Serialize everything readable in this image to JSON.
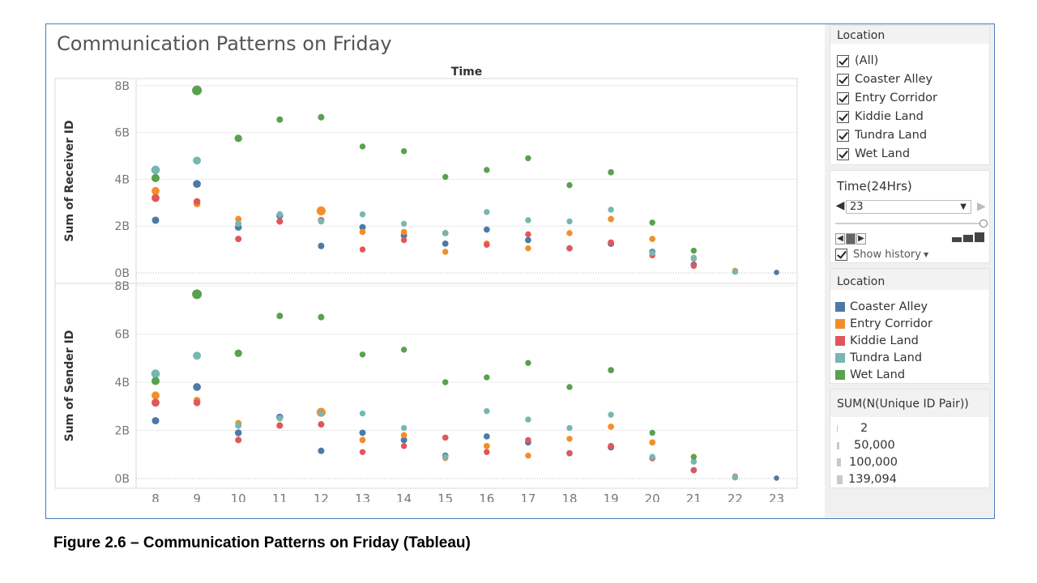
{
  "title": "Communication Patterns on Friday",
  "caption": "Figure 2.6 – Communication Patterns on Friday (Tableau)",
  "colors": {
    "Coaster Alley": "#4e79a7",
    "Entry Corridor": "#f28e2b",
    "Kiddie Land": "#e15759",
    "Tundra Land": "#76b7b2",
    "Wet Land": "#59a14f"
  },
  "filter_location": {
    "header": "Location",
    "items": [
      "(All)",
      "Coaster Alley",
      "Entry Corridor",
      "Kiddie Land",
      "Tundra Land",
      "Wet Land"
    ]
  },
  "time_filter": {
    "header": "Time(24Hrs)",
    "value": "23",
    "show_history": "Show history"
  },
  "legend_location": {
    "header": "Location",
    "items": [
      "Coaster Alley",
      "Entry Corridor",
      "Kiddie Land",
      "Tundra Land",
      "Wet Land"
    ]
  },
  "legend_size": {
    "header": "SUM(N(Unique ID Pair))",
    "items": [
      "2",
      "50,000",
      "100,000",
      "139,094"
    ]
  },
  "chart_data": {
    "type": "scatter",
    "column_header": "Time",
    "x": [
      8,
      9,
      10,
      11,
      12,
      13,
      14,
      15,
      16,
      17,
      18,
      19,
      20,
      21,
      22,
      23
    ],
    "x_ticks": [
      "8",
      "9",
      "10",
      "11",
      "12",
      "13",
      "14",
      "15",
      "16",
      "17",
      "18",
      "19",
      "20",
      "21",
      "22",
      "23"
    ],
    "size_unit": "SUM(N(Unique ID Pair))",
    "panels": [
      {
        "ylabel": "Sum of Receiver ID",
        "ylim": [
          0,
          8.4
        ],
        "y_unit": "billions",
        "y_ticks": [
          "0B",
          "2B",
          "4B",
          "6B",
          "8B"
        ],
        "series": [
          {
            "name": "Coaster Alley",
            "values": [
              2.25,
              3.8,
              1.95,
              2.45,
              1.15,
              1.95,
              1.6,
              1.25,
              1.85,
              1.4,
              1.05,
              1.25,
              0.9,
              0.35,
              0.05,
              0.02
            ],
            "sizes": [
              55000,
              70000,
              45000,
              45000,
              35000,
              35000,
              35000,
              30000,
              30000,
              30000,
              30000,
              35000,
              30000,
              30000,
              25000,
              15000
            ]
          },
          {
            "name": "Entry Corridor",
            "values": [
              3.5,
              2.95,
              2.3,
              2.2,
              2.65,
              1.75,
              1.75,
              0.9,
              1.25,
              1.05,
              1.7,
              2.3,
              1.45,
              0.6,
              0.1,
              null
            ],
            "sizes": [
              75000,
              45000,
              35000,
              35000,
              110000,
              30000,
              30000,
              25000,
              30000,
              25000,
              25000,
              30000,
              30000,
              25000,
              20000,
              0
            ]
          },
          {
            "name": "Kiddie Land",
            "values": [
              3.2,
              3.05,
              1.45,
              2.2,
              2.25,
              1.0,
              1.4,
              1.7,
              1.2,
              1.65,
              1.05,
              1.3,
              0.75,
              0.3,
              0.05,
              null
            ],
            "sizes": [
              75000,
              45000,
              35000,
              35000,
              35000,
              25000,
              25000,
              30000,
              25000,
              25000,
              25000,
              30000,
              25000,
              25000,
              20000,
              0
            ]
          },
          {
            "name": "Tundra Land",
            "values": [
              4.4,
              4.8,
              2.1,
              2.5,
              2.2,
              2.5,
              2.1,
              1.7,
              2.6,
              2.25,
              2.2,
              2.7,
              0.85,
              0.65,
              0.05,
              null
            ],
            "sizes": [
              95000,
              75000,
              35000,
              30000,
              30000,
              25000,
              25000,
              25000,
              25000,
              25000,
              25000,
              25000,
              25000,
              25000,
              20000,
              0
            ]
          },
          {
            "name": "Wet Land",
            "values": [
              4.05,
              7.8,
              5.75,
              6.55,
              6.65,
              5.4,
              5.2,
              4.1,
              4.4,
              4.9,
              3.75,
              4.3,
              2.15,
              0.95,
              null,
              null
            ],
            "sizes": [
              80000,
              139094,
              60000,
              35000,
              35000,
              25000,
              25000,
              25000,
              25000,
              25000,
              25000,
              30000,
              25000,
              25000,
              0,
              0
            ]
          }
        ]
      },
      {
        "ylabel": "Sum of Sender ID",
        "ylim": [
          0,
          8.4
        ],
        "y_unit": "billions",
        "y_ticks": [
          "0B",
          "2B",
          "4B",
          "6B",
          "8B"
        ],
        "series": [
          {
            "name": "Coaster Alley",
            "values": [
              2.4,
              3.8,
              1.9,
              2.55,
              1.15,
              1.9,
              1.6,
              0.95,
              1.75,
              1.5,
              1.05,
              1.3,
              0.85,
              0.35,
              0.05,
              0.02
            ],
            "sizes": [
              55000,
              70000,
              45000,
              45000,
              35000,
              35000,
              35000,
              30000,
              30000,
              30000,
              30000,
              35000,
              30000,
              30000,
              25000,
              15000
            ]
          },
          {
            "name": "Entry Corridor",
            "values": [
              3.45,
              3.25,
              2.3,
              2.2,
              2.75,
              1.6,
              1.8,
              0.85,
              1.35,
              0.95,
              1.65,
              2.15,
              1.5,
              0.7,
              0.1,
              null
            ],
            "sizes": [
              75000,
              45000,
              35000,
              35000,
              110000,
              30000,
              30000,
              25000,
              30000,
              25000,
              25000,
              30000,
              30000,
              25000,
              20000,
              0
            ]
          },
          {
            "name": "Kiddie Land",
            "values": [
              3.15,
              3.15,
              1.6,
              2.2,
              2.25,
              1.1,
              1.35,
              1.7,
              1.1,
              1.6,
              1.05,
              1.35,
              0.85,
              0.35,
              0.05,
              null
            ],
            "sizes": [
              75000,
              45000,
              35000,
              35000,
              35000,
              25000,
              25000,
              30000,
              25000,
              25000,
              25000,
              30000,
              25000,
              25000,
              20000,
              0
            ]
          },
          {
            "name": "Tundra Land",
            "values": [
              4.35,
              5.1,
              2.2,
              2.5,
              2.7,
              2.7,
              2.1,
              0.9,
              2.8,
              2.45,
              2.1,
              2.65,
              0.9,
              0.7,
              0.05,
              null
            ],
            "sizes": [
              95000,
              75000,
              35000,
              30000,
              30000,
              25000,
              25000,
              25000,
              25000,
              25000,
              25000,
              25000,
              25000,
              25000,
              20000,
              0
            ]
          },
          {
            "name": "Wet Land",
            "values": [
              4.05,
              7.65,
              5.2,
              6.75,
              6.7,
              5.15,
              5.35,
              4.0,
              4.2,
              4.8,
              3.8,
              4.5,
              1.9,
              0.9,
              null,
              null
            ],
            "sizes": [
              80000,
              139094,
              60000,
              35000,
              35000,
              25000,
              25000,
              25000,
              25000,
              25000,
              25000,
              30000,
              25000,
              25000,
              0,
              0
            ]
          }
        ]
      }
    ]
  }
}
